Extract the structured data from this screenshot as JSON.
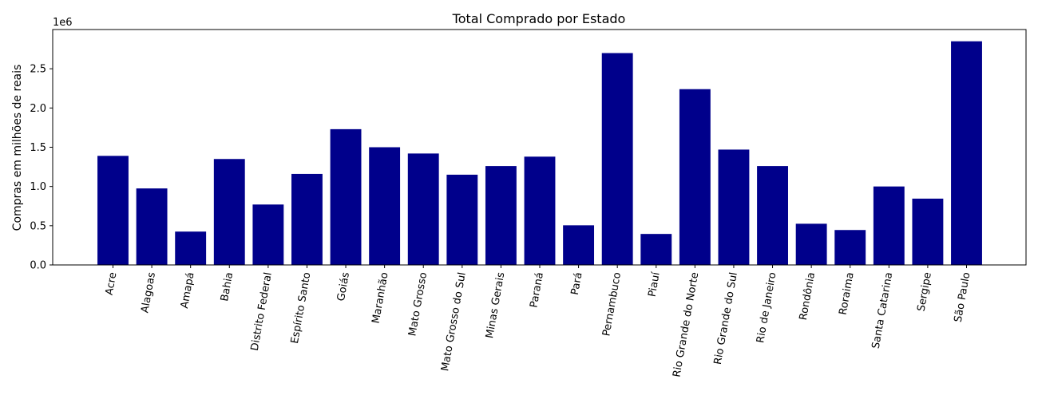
{
  "chart_data": {
    "type": "bar",
    "title": "Total Comprado por Estado",
    "xlabel": "",
    "ylabel": "Compras em milhões de reais",
    "offset_text": "1e6",
    "ylim": [
      0,
      3000000
    ],
    "yticks": [
      0,
      500000,
      1000000,
      1500000,
      2000000,
      2500000
    ],
    "ytick_labels": [
      "0.0",
      "0.5",
      "1.0",
      "1.5",
      "2.0",
      "2.5"
    ],
    "bar_color": "#00008b",
    "grid": false,
    "categories": [
      "Acre",
      "Alagoas",
      "Amapá",
      "Bahia",
      "Distrito Federal",
      "Espírito Santo",
      "Goiás",
      "Maranhão",
      "Mato Grosso",
      "Mato Grosso do Sul",
      "Minas Gerais",
      "Paraná",
      "Pará",
      "Pernambuco",
      "Piauí",
      "Rio Grande do Norte",
      "Rio Grande do Sul",
      "Rio de Janeiro",
      "Rondônia",
      "Roraima",
      "Santa Catarina",
      "Sergipe",
      "São Paulo"
    ],
    "values": [
      1390000,
      975000,
      425000,
      1350000,
      770000,
      1160000,
      1730000,
      1500000,
      1420000,
      1150000,
      1260000,
      1380000,
      505000,
      2700000,
      395000,
      2240000,
      1470000,
      1260000,
      525000,
      445000,
      1000000,
      845000,
      2850000
    ]
  }
}
